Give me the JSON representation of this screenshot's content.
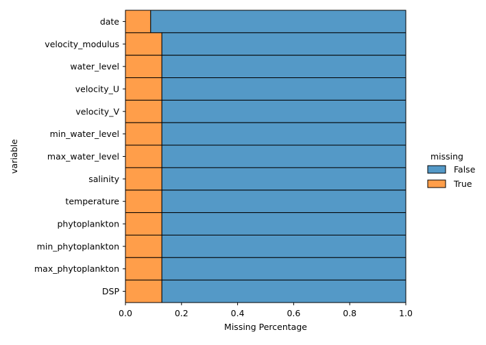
{
  "chart_data": {
    "type": "bar",
    "orientation": "horizontal",
    "stacked": true,
    "categories": [
      "date",
      "velocity_modulus",
      "water_level",
      "velocity_U",
      "velocity_V",
      "min_water_level",
      "max_water_level",
      "salinity",
      "temperature",
      "phytoplankton",
      "min_phytoplankton",
      "max_phytoplankton",
      "DSP"
    ],
    "series": [
      {
        "name": "True",
        "color": "#ff9e4a",
        "values": [
          0.09,
          0.13,
          0.13,
          0.13,
          0.13,
          0.13,
          0.13,
          0.13,
          0.13,
          0.13,
          0.13,
          0.13,
          0.13
        ]
      },
      {
        "name": "False",
        "color": "#5499c7",
        "values": [
          0.91,
          0.87,
          0.87,
          0.87,
          0.87,
          0.87,
          0.87,
          0.87,
          0.87,
          0.87,
          0.87,
          0.87,
          0.87
        ]
      }
    ],
    "xlabel": "Missing Percentage",
    "ylabel": "variable",
    "xlim": [
      0.0,
      1.0
    ],
    "xticks": [
      "0.0",
      "0.2",
      "0.4",
      "0.6",
      "0.8",
      "1.0"
    ],
    "grid": false,
    "legend": {
      "title": "missing",
      "placement": "right",
      "entries": [
        {
          "label": "False",
          "color": "#5499c7"
        },
        {
          "label": "True",
          "color": "#ff9e4a"
        }
      ]
    }
  }
}
